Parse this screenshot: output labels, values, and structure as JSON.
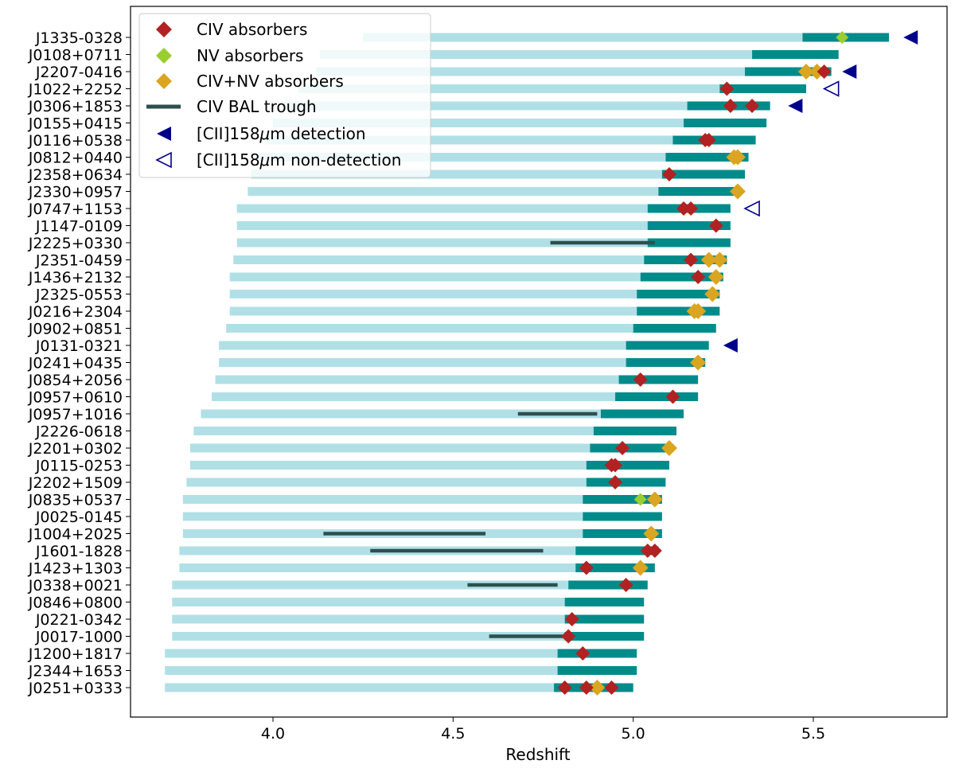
{
  "chart_data": {
    "type": "horizontal-range-bar",
    "xlabel": "Redshift",
    "ylabel": "",
    "xlim": [
      3.65,
      5.93
    ],
    "xticks": [
      4.0,
      4.5,
      5.0,
      5.5
    ],
    "xtick_labels": [
      "4.0",
      "4.5",
      "5.0",
      "5.5"
    ],
    "legend": {
      "placement": "top-left",
      "entries": [
        {
          "key": "civ",
          "label": "CIV absorbers",
          "marker": "diamond",
          "color": "#b22222"
        },
        {
          "key": "nv",
          "label": "NV absorbers",
          "marker": "diamond",
          "color": "#9acd32"
        },
        {
          "key": "civnv",
          "label": "CIV+NV absorbers",
          "marker": "diamond",
          "color": "#daa520"
        },
        {
          "key": "bal",
          "label": "CIV BAL trough",
          "marker": "line",
          "color": "#2f4f4f"
        },
        {
          "key": "cii_det",
          "label_pre": "[CII]158",
          "label_mu": "μ",
          "label_post": "m detection",
          "marker": "triangle-left-filled",
          "color": "#00008b"
        },
        {
          "key": "cii_non",
          "label_pre": "[CII]158",
          "label_mu": "μ",
          "label_post": "m non-detection",
          "marker": "triangle-left-open",
          "color": "#00008b"
        }
      ]
    },
    "colors": {
      "civ_path": "#b0e0e6",
      "nv_path": "#008b8b",
      "civ": "#b22222",
      "nv": "#9acd32",
      "civnv": "#daa520",
      "bal": "#2f4f4f",
      "cii": "#00008b"
    },
    "quasars": [
      {
        "name": "J1335-0328",
        "light": [
          4.25,
          5.47
        ],
        "dark": [
          5.47,
          5.71
        ],
        "civ": [],
        "nv": [
          5.58
        ],
        "civnv": [],
        "bal": null,
        "cii": {
          "z": 5.77,
          "detected": true
        }
      },
      {
        "name": "J0108+0711",
        "light": [
          4.13,
          5.33
        ],
        "dark": [
          5.33,
          5.57
        ],
        "civ": [],
        "nv": [],
        "civnv": [],
        "bal": null,
        "cii": null
      },
      {
        "name": "J2207-0416",
        "light": [
          4.12,
          5.31
        ],
        "dark": [
          5.31,
          5.55
        ],
        "civ": [
          5.53
        ],
        "nv": [],
        "civnv": [
          5.48,
          5.51
        ],
        "bal": null,
        "cii": {
          "z": 5.6,
          "detected": true
        }
      },
      {
        "name": "J1022+2252",
        "light": [
          4.07,
          5.24
        ],
        "dark": [
          5.24,
          5.48
        ],
        "civ": [
          5.26
        ],
        "nv": [],
        "civnv": [],
        "bal": null,
        "cii": {
          "z": 5.55,
          "detected": false
        }
      },
      {
        "name": "J0306+1853",
        "light": [
          4.03,
          5.15
        ],
        "dark": [
          5.15,
          5.38
        ],
        "civ": [
          5.27,
          5.33
        ],
        "nv": [],
        "civnv": [],
        "bal": null,
        "cii": {
          "z": 5.45,
          "detected": true
        }
      },
      {
        "name": "J0155+0415",
        "light": [
          4.0,
          5.14
        ],
        "dark": [
          5.14,
          5.37
        ],
        "civ": [],
        "nv": [],
        "civnv": [],
        "bal": null,
        "cii": null
      },
      {
        "name": "J0116+0538",
        "light": [
          3.98,
          5.11
        ],
        "dark": [
          5.11,
          5.34
        ],
        "civ": [
          5.2,
          5.21
        ],
        "nv": [],
        "civnv": [],
        "bal": null,
        "cii": null
      },
      {
        "name": "J0812+0440",
        "light": [
          3.96,
          5.09
        ],
        "dark": [
          5.09,
          5.32
        ],
        "civ": [],
        "nv": [],
        "civnv": [
          5.28,
          5.29
        ],
        "bal": null,
        "cii": null
      },
      {
        "name": "J2358+0634",
        "light": [
          3.94,
          5.08
        ],
        "dark": [
          5.08,
          5.31
        ],
        "civ": [
          5.1
        ],
        "nv": [],
        "civnv": [],
        "bal": null,
        "cii": null
      },
      {
        "name": "J2330+0957",
        "light": [
          3.93,
          5.07
        ],
        "dark": [
          5.07,
          5.29
        ],
        "civ": [],
        "nv": [],
        "civnv": [
          5.29
        ],
        "bal": null,
        "cii": null
      },
      {
        "name": "J0747+1153",
        "light": [
          3.9,
          5.04
        ],
        "dark": [
          5.04,
          5.27
        ],
        "civ": [
          5.14,
          5.16
        ],
        "nv": [],
        "civnv": [],
        "bal": null,
        "cii": {
          "z": 5.33,
          "detected": false
        }
      },
      {
        "name": "J1147-0109",
        "light": [
          3.9,
          5.04
        ],
        "dark": [
          5.04,
          5.27
        ],
        "civ": [
          5.23
        ],
        "nv": [],
        "civnv": [],
        "bal": null,
        "cii": null
      },
      {
        "name": "J2225+0330",
        "light": [
          3.9,
          5.04
        ],
        "dark": [
          5.04,
          5.27
        ],
        "civ": [],
        "nv": [],
        "civnv": [],
        "bal": [
          4.77,
          5.06
        ],
        "cii": null
      },
      {
        "name": "J2351-0459",
        "light": [
          3.89,
          5.03
        ],
        "dark": [
          5.03,
          5.26
        ],
        "civ": [
          5.16
        ],
        "nv": [],
        "civnv": [
          5.21,
          5.24
        ],
        "bal": null,
        "cii": null
      },
      {
        "name": "J1436+2132",
        "light": [
          3.88,
          5.02
        ],
        "dark": [
          5.02,
          5.25
        ],
        "civ": [
          5.18
        ],
        "nv": [],
        "civnv": [
          5.23
        ],
        "bal": null,
        "cii": null
      },
      {
        "name": "J2325-0553",
        "light": [
          3.88,
          5.01
        ],
        "dark": [
          5.01,
          5.24
        ],
        "civ": [],
        "nv": [],
        "civnv": [
          5.22
        ],
        "bal": null,
        "cii": null
      },
      {
        "name": "J0216+2304",
        "light": [
          3.88,
          5.01
        ],
        "dark": [
          5.01,
          5.24
        ],
        "civ": [],
        "nv": [],
        "civnv": [
          5.17,
          5.18
        ],
        "bal": null,
        "cii": null
      },
      {
        "name": "J0902+0851",
        "light": [
          3.87,
          5.0
        ],
        "dark": [
          5.0,
          5.23
        ],
        "civ": [],
        "nv": [],
        "civnv": [],
        "bal": null,
        "cii": null
      },
      {
        "name": "J0131-0321",
        "light": [
          3.85,
          4.98
        ],
        "dark": [
          4.98,
          5.21
        ],
        "civ": [],
        "nv": [],
        "civnv": [],
        "bal": null,
        "cii": {
          "z": 5.27,
          "detected": true
        }
      },
      {
        "name": "J0241+0435",
        "light": [
          3.85,
          4.98
        ],
        "dark": [
          4.98,
          5.2
        ],
        "civ": [],
        "nv": [],
        "civnv": [
          5.18
        ],
        "bal": null,
        "cii": null
      },
      {
        "name": "J0854+2056",
        "light": [
          3.84,
          4.96
        ],
        "dark": [
          4.96,
          5.18
        ],
        "civ": [
          5.02
        ],
        "nv": [],
        "civnv": [],
        "bal": null,
        "cii": null
      },
      {
        "name": "J0957+0610",
        "light": [
          3.83,
          4.95
        ],
        "dark": [
          4.95,
          5.18
        ],
        "civ": [
          5.11
        ],
        "nv": [],
        "civnv": [],
        "bal": null,
        "cii": null
      },
      {
        "name": "J0957+1016",
        "light": [
          3.8,
          4.91
        ],
        "dark": [
          4.91,
          5.14
        ],
        "civ": [],
        "nv": [],
        "civnv": [],
        "bal": [
          4.68,
          4.9
        ],
        "cii": null
      },
      {
        "name": "J2226-0618",
        "light": [
          3.78,
          4.89
        ],
        "dark": [
          4.89,
          5.12
        ],
        "civ": [],
        "nv": [],
        "civnv": [],
        "bal": null,
        "cii": null
      },
      {
        "name": "J2201+0302",
        "light": [
          3.77,
          4.88
        ],
        "dark": [
          4.88,
          5.1
        ],
        "civ": [
          4.97
        ],
        "nv": [],
        "civnv": [
          5.1
        ],
        "bal": null,
        "cii": null
      },
      {
        "name": "J0115-0253",
        "light": [
          3.77,
          4.87
        ],
        "dark": [
          4.87,
          5.1
        ],
        "civ": [
          4.94,
          4.95
        ],
        "nv": [],
        "civnv": [],
        "bal": null,
        "cii": null
      },
      {
        "name": "J2202+1509",
        "light": [
          3.76,
          4.87
        ],
        "dark": [
          4.87,
          5.09
        ],
        "civ": [
          4.95
        ],
        "nv": [],
        "civnv": [],
        "bal": null,
        "cii": null
      },
      {
        "name": "J0835+0537",
        "light": [
          3.75,
          4.86
        ],
        "dark": [
          4.86,
          5.08
        ],
        "civ": [],
        "nv": [
          5.02
        ],
        "civnv": [
          5.06
        ],
        "bal": null,
        "cii": null
      },
      {
        "name": "J0025-0145",
        "light": [
          3.75,
          4.86
        ],
        "dark": [
          4.86,
          5.08
        ],
        "civ": [],
        "nv": [],
        "civnv": [],
        "bal": null,
        "cii": null
      },
      {
        "name": "J1004+2025",
        "light": [
          3.75,
          4.86
        ],
        "dark": [
          4.86,
          5.08
        ],
        "civ": [],
        "nv": [],
        "civnv": [
          5.05
        ],
        "bal": [
          4.14,
          4.59
        ],
        "cii": null
      },
      {
        "name": "J1601-1828",
        "light": [
          3.74,
          4.84
        ],
        "dark": [
          4.84,
          5.07
        ],
        "civ": [
          5.04,
          5.06
        ],
        "nv": [],
        "civnv": [],
        "bal": [
          4.27,
          4.75
        ],
        "cii": null
      },
      {
        "name": "J1423+1303",
        "light": [
          3.74,
          4.84
        ],
        "dark": [
          4.84,
          5.06
        ],
        "civ": [
          4.87
        ],
        "nv": [],
        "civnv": [
          5.02
        ],
        "bal": null,
        "cii": null
      },
      {
        "name": "J0338+0021",
        "light": [
          3.72,
          4.82
        ],
        "dark": [
          4.82,
          5.04
        ],
        "civ": [
          4.98
        ],
        "nv": [],
        "civnv": [],
        "bal": [
          4.54,
          4.79
        ],
        "cii": null
      },
      {
        "name": "J0846+0800",
        "light": [
          3.72,
          4.81
        ],
        "dark": [
          4.81,
          5.03
        ],
        "civ": [],
        "nv": [],
        "civnv": [],
        "bal": null,
        "cii": null
      },
      {
        "name": "J0221-0342",
        "light": [
          3.72,
          4.81
        ],
        "dark": [
          4.81,
          5.03
        ],
        "civ": [
          4.83
        ],
        "nv": [],
        "civnv": [],
        "bal": null,
        "cii": null
      },
      {
        "name": "J0017-1000",
        "light": [
          3.72,
          4.81
        ],
        "dark": [
          4.81,
          5.03
        ],
        "civ": [
          4.82
        ],
        "nv": [],
        "civnv": [],
        "bal": [
          4.6,
          4.82
        ],
        "cii": null
      },
      {
        "name": "J1200+1817",
        "light": [
          3.7,
          4.79
        ],
        "dark": [
          4.79,
          5.01
        ],
        "civ": [
          4.86
        ],
        "nv": [],
        "civnv": [],
        "bal": null,
        "cii": null
      },
      {
        "name": "J2344+1653",
        "light": [
          3.7,
          4.79
        ],
        "dark": [
          4.79,
          5.01
        ],
        "civ": [],
        "nv": [],
        "civnv": [],
        "bal": null,
        "cii": null
      },
      {
        "name": "J0251+0333",
        "light": [
          3.7,
          4.78
        ],
        "dark": [
          4.78,
          5.0
        ],
        "civ": [
          4.81,
          4.87,
          4.94
        ],
        "nv": [],
        "civnv": [
          4.9
        ],
        "bal": null,
        "cii": null
      }
    ]
  }
}
